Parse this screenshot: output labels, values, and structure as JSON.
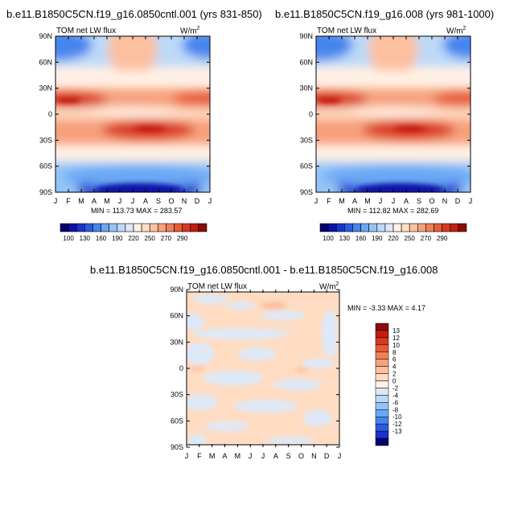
{
  "panels": [
    {
      "title": "b.e11.B1850C5CN.f19_g16.0850cntl.001 (yrs 831-850)",
      "left_string": "TOM net LW flux",
      "units_base": "W/m",
      "units_exp": "2",
      "stats": "MIN = 113.73 MAX = 283.57"
    },
    {
      "title": "b.e11.B1850C5CN.f19_g16.008 (yrs 981-1000)",
      "left_string": "TOM net LW flux",
      "units_base": "W/m",
      "units_exp": "2",
      "stats": "MIN = 112.82 MAX = 282.69"
    },
    {
      "title": "b.e11.B1850C5CN.f19_g16.0850cntl.001 - b.e11.B1850C5CN.f19_g16.008",
      "left_string": "TOM net LW flux",
      "units_base": "W/m",
      "units_exp": "2",
      "stats": "MIN = -3.33 MAX =   4.17"
    }
  ],
  "months": [
    "J",
    "F",
    "M",
    "A",
    "M",
    "J",
    "J",
    "A",
    "S",
    "O",
    "N",
    "D",
    "J"
  ],
  "lat_labels": [
    "90N",
    "60N",
    "30N",
    "0",
    "30S",
    "60S",
    "90S"
  ],
  "colorbar_top": {
    "labels": [
      "100",
      "130",
      "160",
      "190",
      "220",
      "250",
      "270",
      "290"
    ],
    "colors": [
      "#05006e",
      "#0b12a8",
      "#1a33cc",
      "#2b5be3",
      "#4785ee",
      "#6aa7f4",
      "#94c4f7",
      "#bcd9f8",
      "#dde9f8",
      "#fff1e5",
      "#ffdcc2",
      "#fcc0a0",
      "#f7a07c",
      "#f07f58",
      "#e75c37",
      "#d9381f",
      "#c21d12",
      "#8c0b0b"
    ]
  },
  "colorbar_diff": {
    "labels": [
      "13",
      "12",
      "10",
      "8",
      "6",
      "4",
      "2",
      "0",
      "-2",
      "-4",
      "-6",
      "-8",
      "-10",
      "-12",
      "-13"
    ],
    "colors": [
      "#8c0b0b",
      "#c21d12",
      "#d9381f",
      "#e75c37",
      "#f07f58",
      "#f7a07c",
      "#fcc0a0",
      "#ffdcc2",
      "#fff1e5",
      "#dde9f8",
      "#bcd9f8",
      "#94c4f7",
      "#6aa7f4",
      "#4785ee",
      "#2b5be3",
      "#1a33cc",
      "#05006e"
    ]
  },
  "chart_data": [
    {
      "type": "heatmap",
      "title": "b.e11.B1850C5CN.f19_g16.0850cntl.001 (yrs 831-850)",
      "xlabel": "",
      "ylabel": "",
      "x_ticks": [
        "J",
        "F",
        "M",
        "A",
        "M",
        "J",
        "J",
        "A",
        "S",
        "O",
        "N",
        "D",
        "J"
      ],
      "y_ticks": [
        "90N",
        "60N",
        "30N",
        "0",
        "30S",
        "60S",
        "90S"
      ],
      "ylim": [
        -90,
        90
      ],
      "variable": "TOM net LW flux",
      "units": "W/m2",
      "min": 113.73,
      "max": 283.57,
      "levels": [
        100,
        130,
        160,
        190,
        220,
        250,
        270,
        290
      ]
    },
    {
      "type": "heatmap",
      "title": "b.e11.B1850C5CN.f19_g16.008 (yrs 981-1000)",
      "xlabel": "",
      "ylabel": "",
      "x_ticks": [
        "J",
        "F",
        "M",
        "A",
        "M",
        "J",
        "J",
        "A",
        "S",
        "O",
        "N",
        "D",
        "J"
      ],
      "y_ticks": [
        "90N",
        "60N",
        "30N",
        "0",
        "30S",
        "60S",
        "90S"
      ],
      "ylim": [
        -90,
        90
      ],
      "variable": "TOM net LW flux",
      "units": "W/m2",
      "min": 112.82,
      "max": 282.69,
      "levels": [
        100,
        130,
        160,
        190,
        220,
        250,
        270,
        290
      ]
    },
    {
      "type": "heatmap",
      "title": "b.e11.B1850C5CN.f19_g16.0850cntl.001 - b.e11.B1850C5CN.f19_g16.008",
      "xlabel": "",
      "ylabel": "",
      "x_ticks": [
        "J",
        "F",
        "M",
        "A",
        "M",
        "J",
        "J",
        "A",
        "S",
        "O",
        "N",
        "D",
        "J"
      ],
      "y_ticks": [
        "90N",
        "60N",
        "30N",
        "0",
        "30S",
        "60S",
        "90S"
      ],
      "ylim": [
        -90,
        90
      ],
      "variable": "TOM net LW flux",
      "units": "W/m2",
      "min": -3.33,
      "max": 4.17,
      "levels": [
        -13,
        -12,
        -10,
        -8,
        -6,
        -4,
        -2,
        0,
        2,
        4,
        6,
        8,
        10,
        12,
        13
      ]
    }
  ]
}
